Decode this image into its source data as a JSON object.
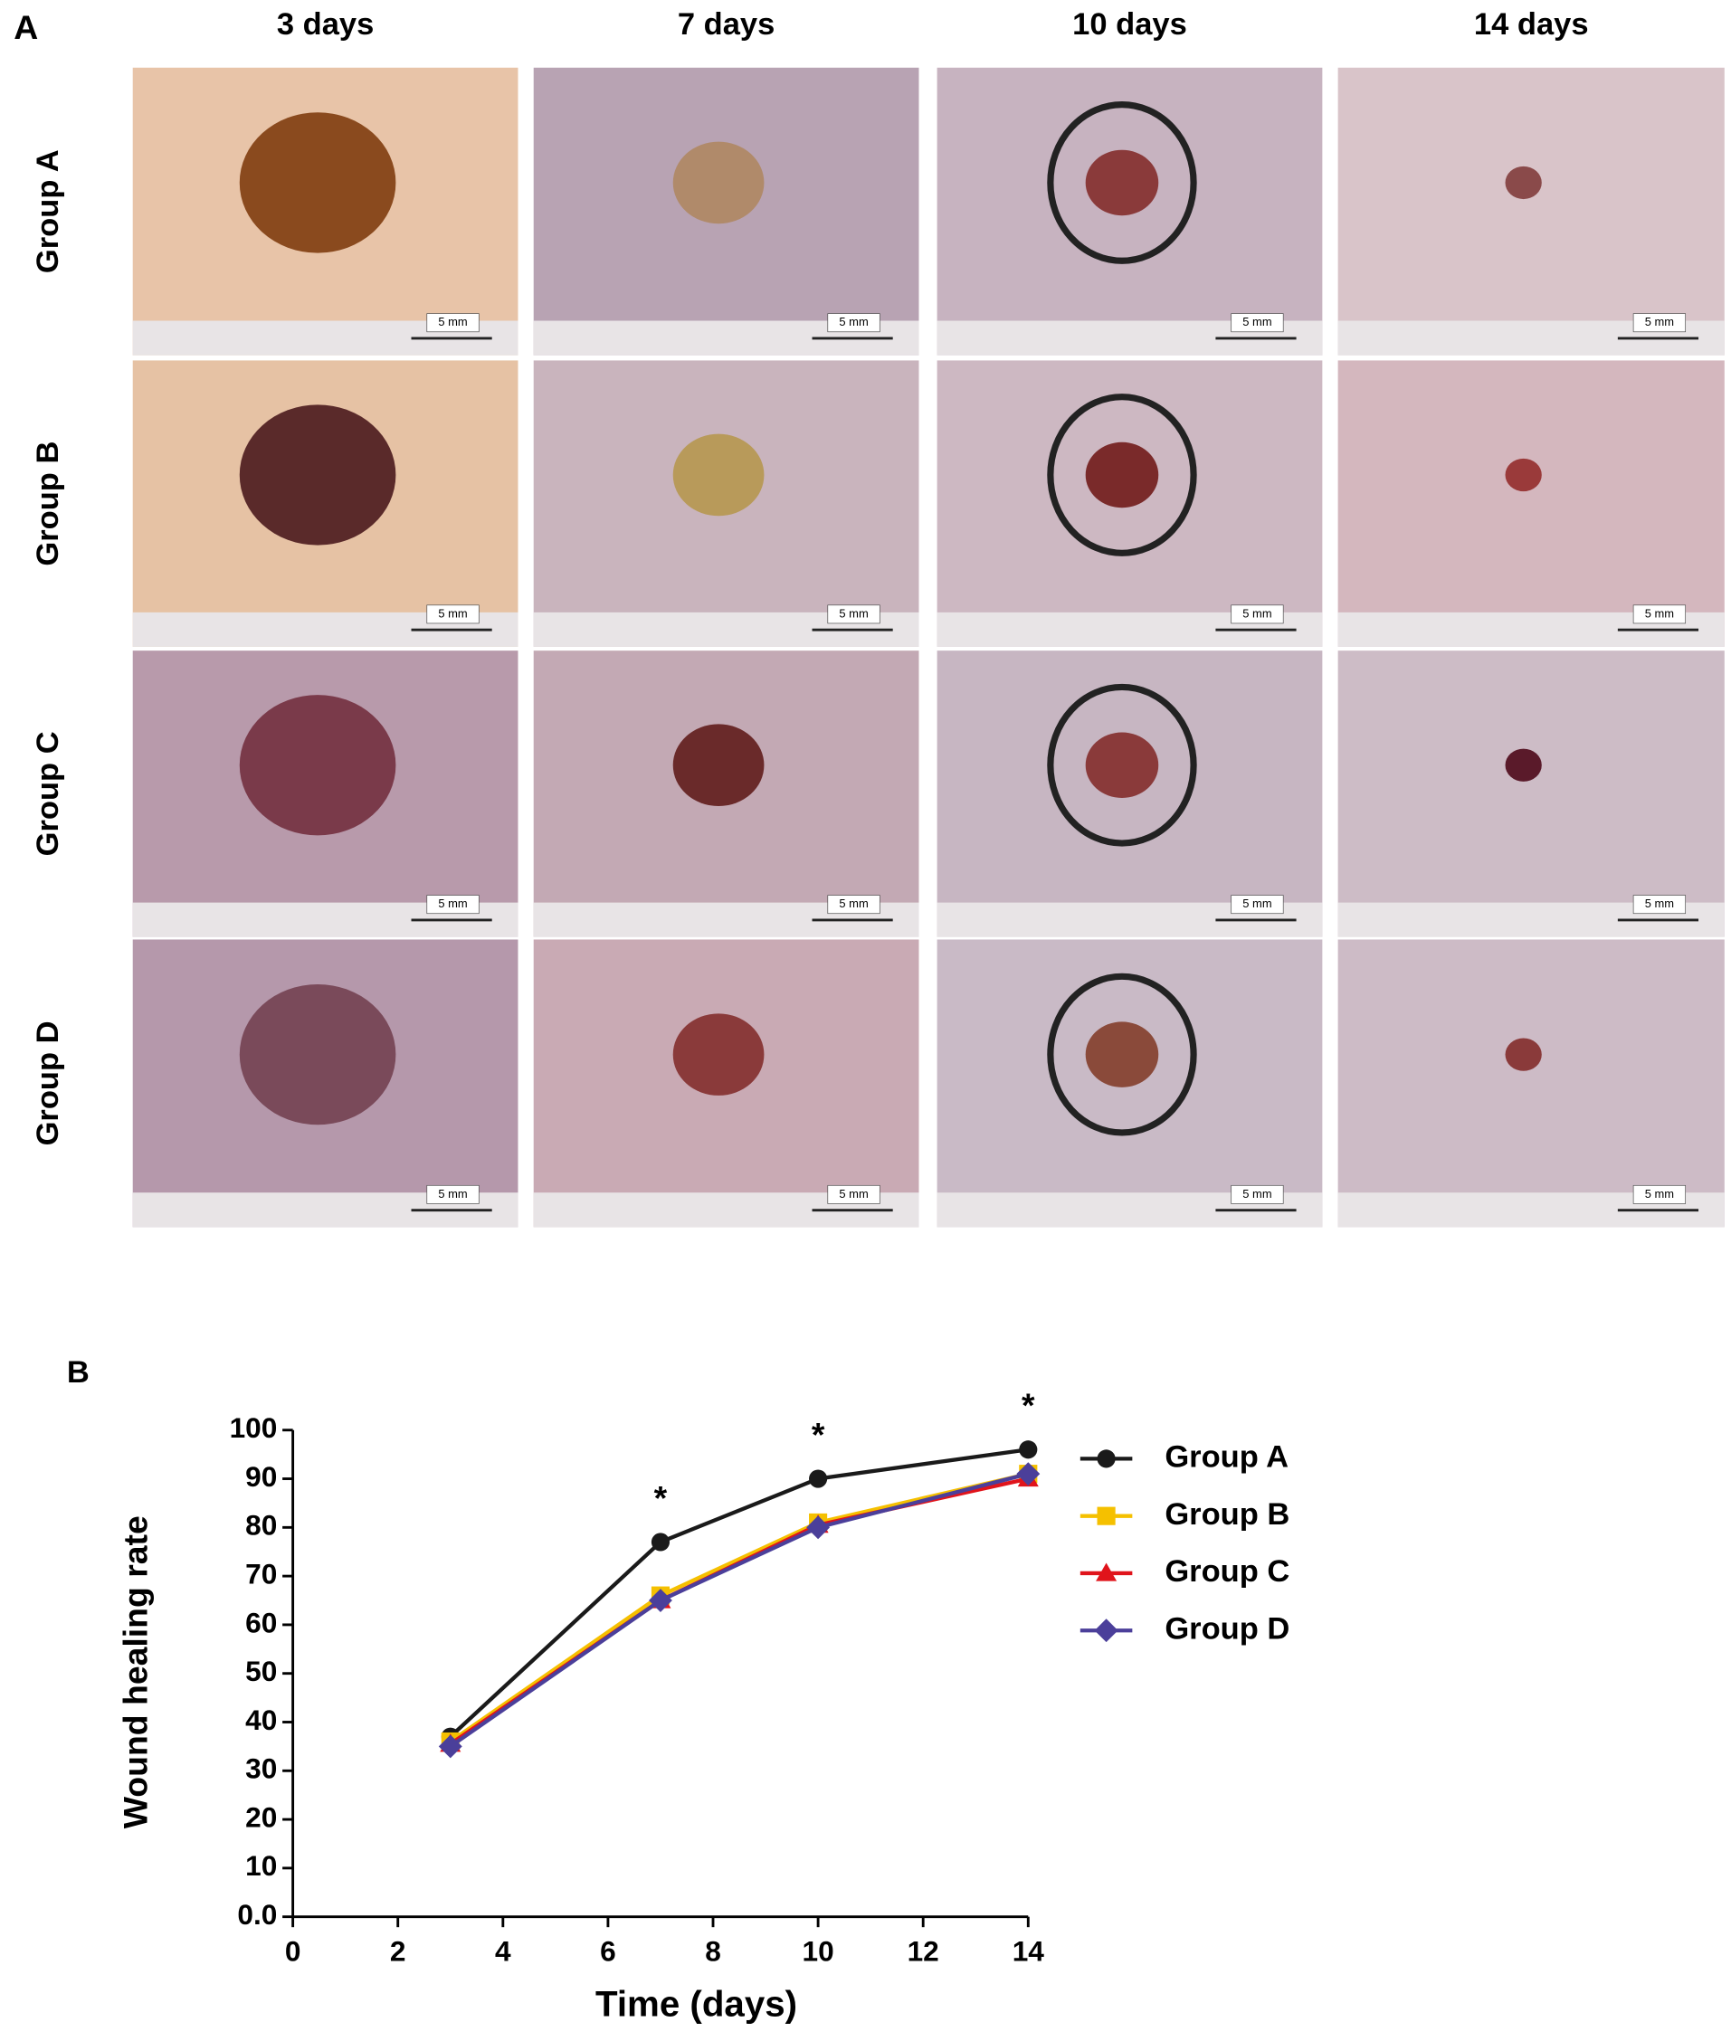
{
  "panel_a": {
    "label": "A",
    "columns": [
      "3 days",
      "7 days",
      "10 days",
      "14 days"
    ],
    "rows": [
      "Group A",
      "Group B",
      "Group C",
      "Group D"
    ],
    "scale_bar_label": "5 mm"
  },
  "chart_data": {
    "type": "line",
    "panel_label": "B",
    "x_label": "Time (days)",
    "y_label": "Wound healing rate",
    "x": [
      3,
      7,
      10,
      14
    ],
    "series": [
      {
        "name": "Group A",
        "color": "#1a1a1a",
        "marker": "circle",
        "values": [
          37,
          77,
          90,
          96
        ]
      },
      {
        "name": "Group B",
        "color": "#f5c000",
        "marker": "square",
        "values": [
          36,
          66,
          81,
          91
        ]
      },
      {
        "name": "Group C",
        "color": "#e0141b",
        "marker": "triangle",
        "values": [
          35.5,
          65,
          80.5,
          90
        ]
      },
      {
        "name": "Group D",
        "color": "#4b3f9a",
        "marker": "diamond",
        "values": [
          35,
          65,
          80,
          91
        ]
      }
    ],
    "xlim": [
      0,
      14
    ],
    "xticks": [
      0,
      2,
      4,
      6,
      8,
      10,
      12,
      14
    ],
    "ylim": [
      0,
      100
    ],
    "yticks": [
      {
        "value": 0,
        "label": "0.0"
      },
      10,
      20,
      30,
      40,
      50,
      60,
      70,
      80,
      90,
      100
    ],
    "annotations": [
      {
        "text": "*",
        "x": 7
      },
      {
        "text": "*",
        "x": 10
      },
      {
        "text": "*",
        "x": 14
      }
    ],
    "legend": "right"
  }
}
